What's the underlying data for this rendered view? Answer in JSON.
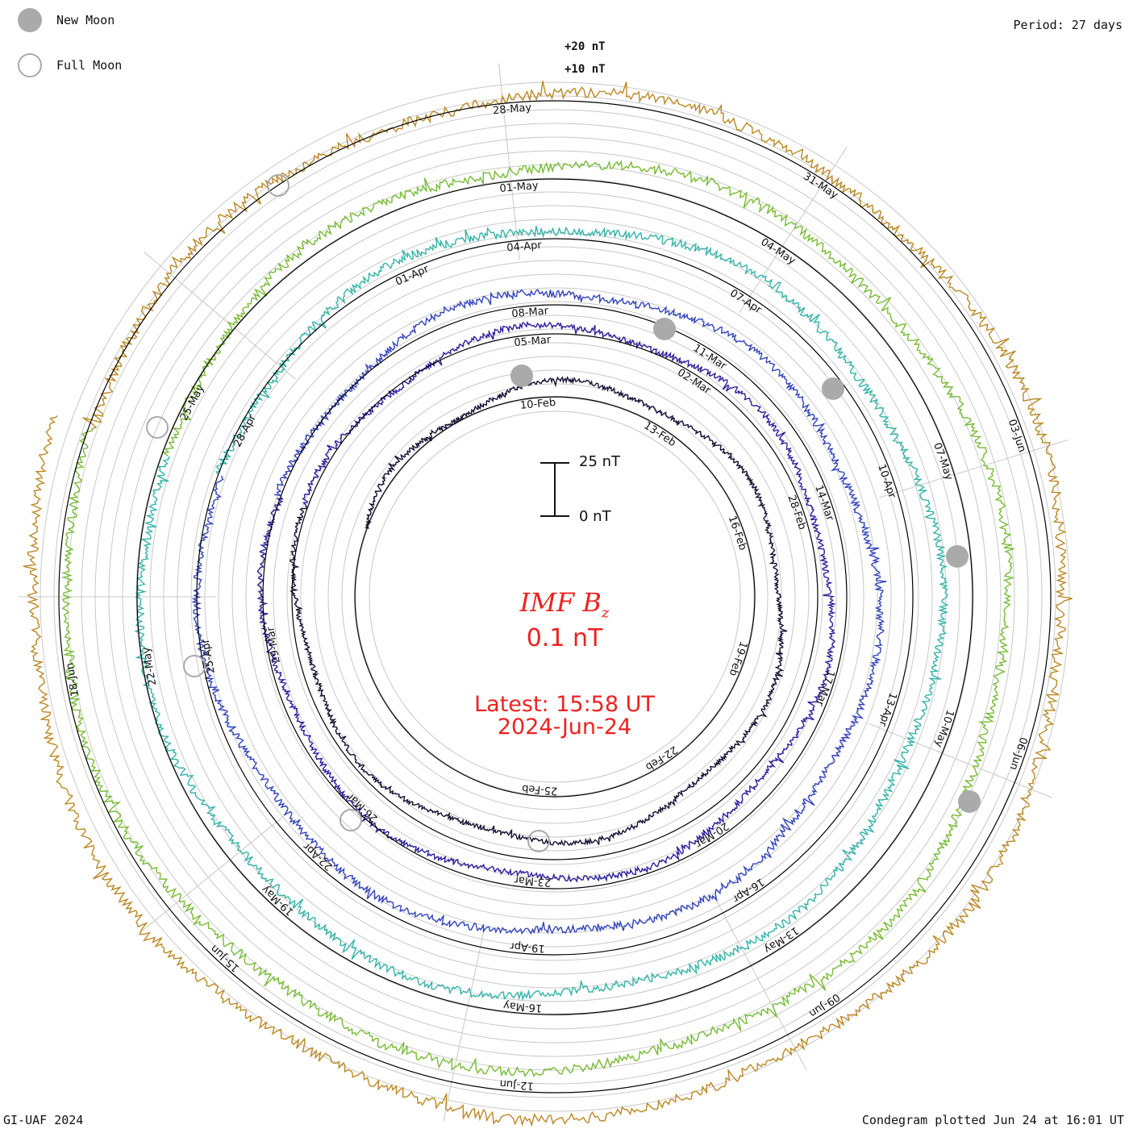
{
  "legend": {
    "new_moon": "New Moon",
    "full_moon": "Full Moon",
    "new_moon_color": "#aaaaaa",
    "full_moon_color": "#aaaaaa"
  },
  "period_label": "Period: 27 days",
  "credit": "GI-UAF 2024",
  "plotted_label": "Condegram plotted Jun 24 at 16:01 UT",
  "title_main": "IMF B",
  "title_sub": "z",
  "current_value": "0.1 nT",
  "latest_line": "Latest: 15:58 UT",
  "latest_date": "2024-Jun-24",
  "scale_labels": {
    "top": "25 nT",
    "bottom": "0 nT"
  },
  "chart_data": {
    "type": "line",
    "layout": "spiral condegram",
    "period_days": 27,
    "quantity": "IMF Bz",
    "units": "nT",
    "ring_scale_labels": [
      "+20 nT",
      "+10 nT"
    ],
    "scale_bar": {
      "top": "25 nT",
      "bottom": "0 nT"
    },
    "rotations": [
      {
        "color": "#111133",
        "dates": [
          "10-Feb",
          "13-Feb",
          "16-Feb",
          "19-Feb",
          "22-Feb",
          "25-Feb"
        ]
      },
      {
        "color": "#2a1f9a",
        "dates": [
          "05-Mar",
          "02-Mar",
          "28-Feb"
        ]
      },
      {
        "color": "#3344bb",
        "dates": [
          "08-Mar",
          "11-Mar",
          "14-Mar",
          "17-Mar",
          "20-Mar",
          "23-Mar",
          "26-Mar",
          "29-Mar"
        ]
      },
      {
        "color": "#33b3a8",
        "dates": [
          "04-Apr",
          "07-Apr",
          "10-Apr",
          "13-Apr",
          "16-Apr",
          "19-Apr",
          "22-Apr",
          "25-Apr",
          "28-Apr",
          "01-Apr"
        ]
      },
      {
        "color": "#77bb33",
        "dates": [
          "01-May",
          "04-May",
          "07-May",
          "10-May",
          "13-May",
          "16-May",
          "19-May",
          "22-May",
          "25-May"
        ]
      },
      {
        "color": "#bb8822",
        "dates": [
          "28-May",
          "31-May",
          "03-Jun",
          "06-Jun",
          "09-Jun",
          "12-Jun",
          "15-Jun",
          "18-Jun"
        ]
      }
    ],
    "new_moon_dates": [
      "10-Feb",
      "10-Mar",
      "08-Apr",
      "08-May",
      "06-Jun"
    ],
    "full_moon_dates": [
      "24-Feb",
      "25-Mar",
      "23-Apr",
      "23-May",
      "22-Jun"
    ],
    "latest": {
      "time": "15:58 UT",
      "date": "2024-Jun-24",
      "value_nT": 0.1
    }
  }
}
